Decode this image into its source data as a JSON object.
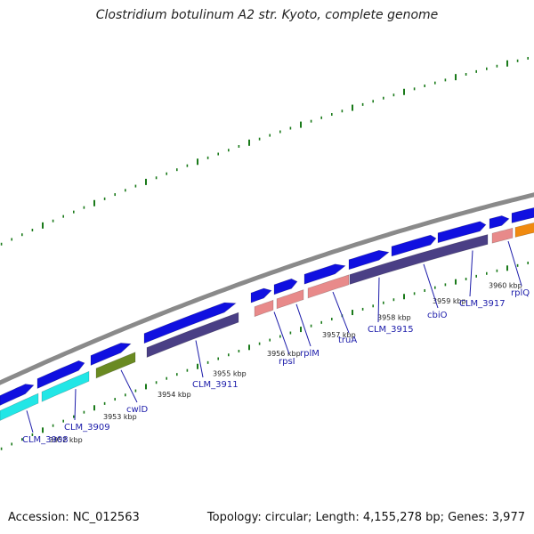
{
  "title": "Clostridium botulinum A2 str. Kyoto, complete genome",
  "footer": {
    "accession": "Accession: NC_012563",
    "topology": "Topology: circular; Length: 4,155,278 bp; Genes: 3,977"
  },
  "colors": {
    "backbone": "#8a8a8a",
    "cds": "#1010e0",
    "protein_cyan": "#22e6e6",
    "protein_olive": "#6a8a22",
    "protein_slate": "#4a3f85",
    "protein_pink": "#e88a8a",
    "protein_orange": "#f08a10",
    "tick": "#1a7a1a",
    "label": "#1c1caa"
  },
  "tick_labels": [
    "3952 kbp",
    "3953 kbp",
    "3954 kbp",
    "3955 kbp",
    "3956 kbp",
    "3957 kbp",
    "3958 kbp",
    "3959 kbp",
    "3960 kbp"
  ],
  "gene_labels": [
    "CLM_3908",
    "CLM_3909",
    "cwlD",
    "CLM_3911",
    "rpsI",
    "rplM",
    "truA",
    "CLM_3915",
    "cbiO",
    "CLM_3917",
    "rplQ"
  ]
}
